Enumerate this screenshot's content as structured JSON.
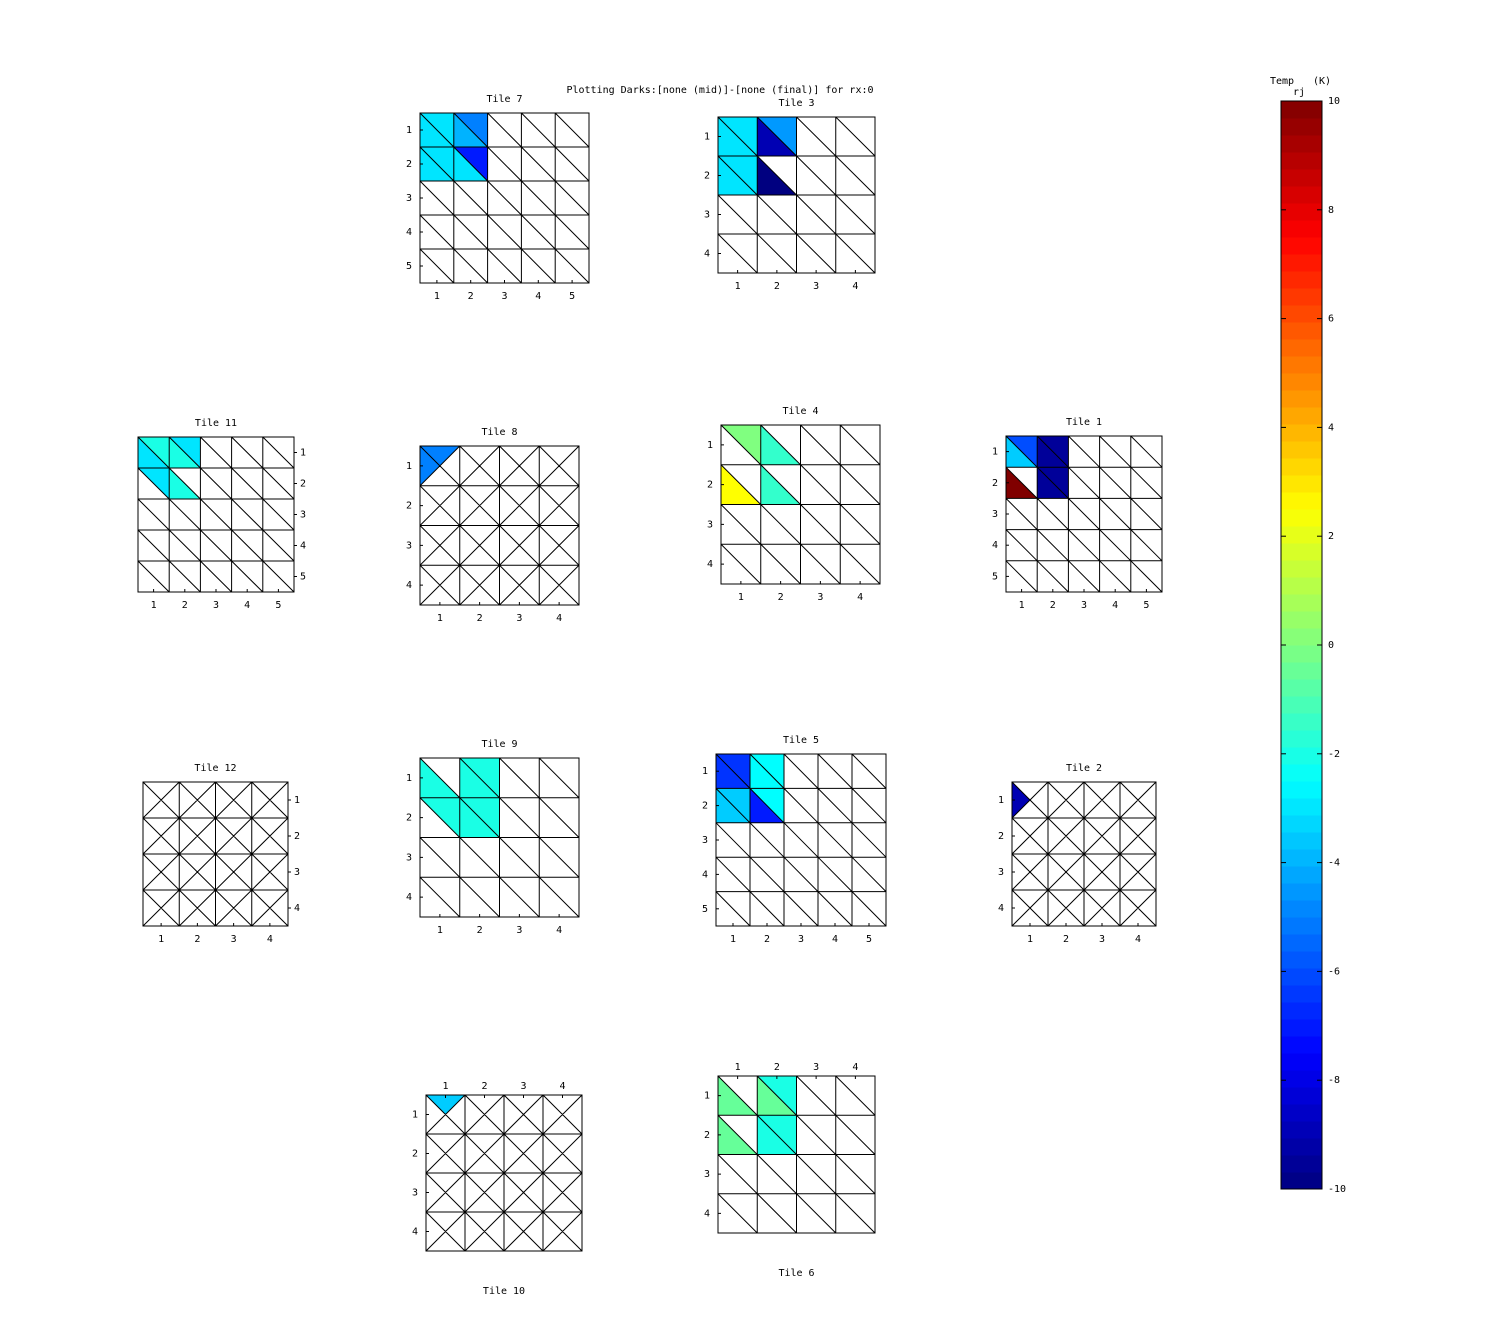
{
  "chart_data": {
    "type": "tile-mesh",
    "title": "Plotting Darks:[none (mid)]-[none (final)] for rx:0",
    "colorbar": {
      "label": "Temp",
      "label_subscript": "rj",
      "unit": "(K)",
      "clim": [
        -10,
        10
      ],
      "colormap": "jet",
      "ticks": [
        -10,
        -8,
        -6,
        -4,
        -2,
        0,
        2,
        4,
        6,
        8,
        10
      ]
    },
    "tiles": [
      {
        "title": "Tile 7",
        "pattern": "diagonal",
        "xticks": [
          1,
          2,
          3,
          4,
          5
        ],
        "yticks": [
          1,
          2,
          3,
          4,
          5
        ],
        "x_axis": "bottom",
        "y_axis": "left",
        "title_position": "top",
        "triangles": [
          {
            "row": 1,
            "col": 1,
            "tri": "upper",
            "value": -3
          },
          {
            "row": 1,
            "col": 1,
            "tri": "lower",
            "value": -3
          },
          {
            "row": 1,
            "col": 2,
            "tri": "upper",
            "value": -5
          },
          {
            "row": 1,
            "col": 2,
            "tri": "lower",
            "value": -4
          },
          {
            "row": 2,
            "col": 1,
            "tri": "upper",
            "value": -3
          },
          {
            "row": 2,
            "col": 1,
            "tri": "lower",
            "value": -3
          },
          {
            "row": 2,
            "col": 2,
            "tri": "upper",
            "value": -7
          },
          {
            "row": 2,
            "col": 2,
            "tri": "lower",
            "value": -3
          }
        ]
      },
      {
        "title": "Tile 3",
        "pattern": "diagonal",
        "xticks": [
          1,
          2,
          3,
          4
        ],
        "yticks": [
          1,
          2,
          3,
          4
        ],
        "x_axis": "bottom",
        "y_axis": "left",
        "title_position": "top",
        "triangles": [
          {
            "row": 1,
            "col": 1,
            "tri": "upper",
            "value": -3
          },
          {
            "row": 1,
            "col": 1,
            "tri": "lower",
            "value": -3
          },
          {
            "row": 1,
            "col": 2,
            "tri": "upper",
            "value": -4.5
          },
          {
            "row": 1,
            "col": 2,
            "tri": "lower",
            "value": -9
          },
          {
            "row": 2,
            "col": 1,
            "tri": "upper",
            "value": -3
          },
          {
            "row": 2,
            "col": 1,
            "tri": "lower",
            "value": -3
          },
          {
            "row": 2,
            "col": 2,
            "tri": "lower",
            "value": -10
          }
        ]
      },
      {
        "title": "Tile 11",
        "pattern": "diagonal",
        "xticks": [
          1,
          2,
          3,
          4,
          5
        ],
        "yticks": [
          1,
          2,
          3,
          4,
          5
        ],
        "x_axis": "bottom",
        "y_axis": "right",
        "title_position": "top",
        "triangles": [
          {
            "row": 1,
            "col": 1,
            "tri": "upper",
            "value": -2
          },
          {
            "row": 1,
            "col": 1,
            "tri": "lower",
            "value": -3
          },
          {
            "row": 1,
            "col": 2,
            "tri": "upper",
            "value": -3
          },
          {
            "row": 1,
            "col": 2,
            "tri": "lower",
            "value": -2
          },
          {
            "row": 2,
            "col": 1,
            "tri": "upper",
            "value": -3
          },
          {
            "row": 2,
            "col": 2,
            "tri": "lower",
            "value": -2
          }
        ]
      },
      {
        "title": "Tile 8",
        "pattern": "cross",
        "xticks": [
          1,
          2,
          3,
          4
        ],
        "yticks": [
          1,
          2,
          3,
          4
        ],
        "x_axis": "bottom",
        "y_axis": "left",
        "title_position": "top",
        "triangles": [
          {
            "row": 1,
            "col": 1,
            "tri": "top",
            "value": -5
          },
          {
            "row": 1,
            "col": 1,
            "tri": "left",
            "value": -5
          }
        ]
      },
      {
        "title": "Tile 4",
        "pattern": "diagonal",
        "xticks": [
          1,
          2,
          3,
          4
        ],
        "yticks": [
          1,
          2,
          3,
          4
        ],
        "x_axis": "bottom",
        "y_axis": "left",
        "title_position": "top",
        "triangles": [
          {
            "row": 1,
            "col": 1,
            "tri": "upper",
            "value": 0
          },
          {
            "row": 1,
            "col": 2,
            "tri": "lower",
            "value": -1.5
          },
          {
            "row": 2,
            "col": 1,
            "tri": "lower",
            "value": 2.5
          },
          {
            "row": 2,
            "col": 2,
            "tri": "lower",
            "value": -1.5
          }
        ]
      },
      {
        "title": "Tile 1",
        "pattern": "diagonal",
        "xticks": [
          1,
          2,
          3,
          4,
          5
        ],
        "yticks": [
          1,
          2,
          3,
          4,
          5
        ],
        "x_axis": "bottom",
        "y_axis": "left",
        "title_position": "top",
        "triangles": [
          {
            "row": 1,
            "col": 1,
            "tri": "upper",
            "value": -6
          },
          {
            "row": 1,
            "col": 1,
            "tri": "lower",
            "value": -3.5
          },
          {
            "row": 1,
            "col": 2,
            "tri": "upper",
            "value": -9.5
          },
          {
            "row": 1,
            "col": 2,
            "tri": "lower",
            "value": -9.5
          },
          {
            "row": 2,
            "col": 1,
            "tri": "lower",
            "value": 10
          },
          {
            "row": 2,
            "col": 2,
            "tri": "upper",
            "value": -9.5
          },
          {
            "row": 2,
            "col": 2,
            "tri": "lower",
            "value": -9.5
          }
        ]
      },
      {
        "title": "Tile 12",
        "pattern": "cross",
        "xticks": [
          1,
          2,
          3,
          4
        ],
        "yticks": [
          1,
          2,
          3,
          4
        ],
        "x_axis": "bottom",
        "y_axis": "right",
        "title_position": "top",
        "triangles": []
      },
      {
        "title": "Tile 9",
        "pattern": "diagonal",
        "xticks": [
          1,
          2,
          3,
          4
        ],
        "yticks": [
          1,
          2,
          3,
          4
        ],
        "x_axis": "bottom",
        "y_axis": "left",
        "title_position": "top",
        "triangles": [
          {
            "row": 1,
            "col": 1,
            "tri": "lower",
            "value": -2
          },
          {
            "row": 1,
            "col": 2,
            "tri": "upper",
            "value": -2
          },
          {
            "row": 1,
            "col": 2,
            "tri": "lower",
            "value": -2
          },
          {
            "row": 2,
            "col": 1,
            "tri": "upper",
            "value": -2
          },
          {
            "row": 2,
            "col": 2,
            "tri": "upper",
            "value": -2
          },
          {
            "row": 2,
            "col": 2,
            "tri": "lower",
            "value": -2
          }
        ]
      },
      {
        "title": "Tile 5",
        "pattern": "diagonal",
        "xticks": [
          1,
          2,
          3,
          4,
          5
        ],
        "yticks": [
          1,
          2,
          3,
          4,
          5
        ],
        "x_axis": "bottom",
        "y_axis": "left",
        "title_position": "top",
        "triangles": [
          {
            "row": 1,
            "col": 1,
            "tri": "upper",
            "value": -6.5
          },
          {
            "row": 1,
            "col": 1,
            "tri": "lower",
            "value": -6.5
          },
          {
            "row": 1,
            "col": 2,
            "tri": "upper",
            "value": -2.5
          },
          {
            "row": 1,
            "col": 2,
            "tri": "lower",
            "value": -2.5
          },
          {
            "row": 2,
            "col": 1,
            "tri": "upper",
            "value": -3.5
          },
          {
            "row": 2,
            "col": 1,
            "tri": "lower",
            "value": -3.5
          },
          {
            "row": 2,
            "col": 2,
            "tri": "upper",
            "value": -2.5
          },
          {
            "row": 2,
            "col": 2,
            "tri": "lower",
            "value": -7
          }
        ]
      },
      {
        "title": "Tile 2",
        "pattern": "cross",
        "xticks": [
          1,
          2,
          3,
          4
        ],
        "yticks": [
          1,
          2,
          3,
          4
        ],
        "x_axis": "bottom",
        "y_axis": "left",
        "title_position": "top",
        "triangles": [
          {
            "row": 1,
            "col": 1,
            "tri": "left",
            "value": -9
          }
        ]
      },
      {
        "title": "Tile 10",
        "pattern": "cross",
        "xticks": [
          1,
          2,
          3,
          4
        ],
        "yticks": [
          1,
          2,
          3,
          4
        ],
        "x_axis": "top",
        "y_axis": "left",
        "title_position": "bottom",
        "triangles": [
          {
            "row": 1,
            "col": 1,
            "tri": "top",
            "value": -3.5
          }
        ]
      },
      {
        "title": "Tile 6",
        "pattern": "diagonal",
        "xticks": [
          1,
          2,
          3,
          4
        ],
        "yticks": [
          1,
          2,
          3,
          4
        ],
        "x_axis": "top",
        "y_axis": "left",
        "title_position": "bottom",
        "triangles": [
          {
            "row": 1,
            "col": 1,
            "tri": "lower",
            "value": -0.5
          },
          {
            "row": 1,
            "col": 2,
            "tri": "upper",
            "value": -2
          },
          {
            "row": 1,
            "col": 2,
            "tri": "lower",
            "value": -0.5
          },
          {
            "row": 2,
            "col": 1,
            "tri": "lower",
            "value": -0.5
          },
          {
            "row": 2,
            "col": 2,
            "tri": "upper",
            "value": -2
          },
          {
            "row": 2,
            "col": 2,
            "tri": "lower",
            "value": -2
          }
        ]
      }
    ]
  }
}
